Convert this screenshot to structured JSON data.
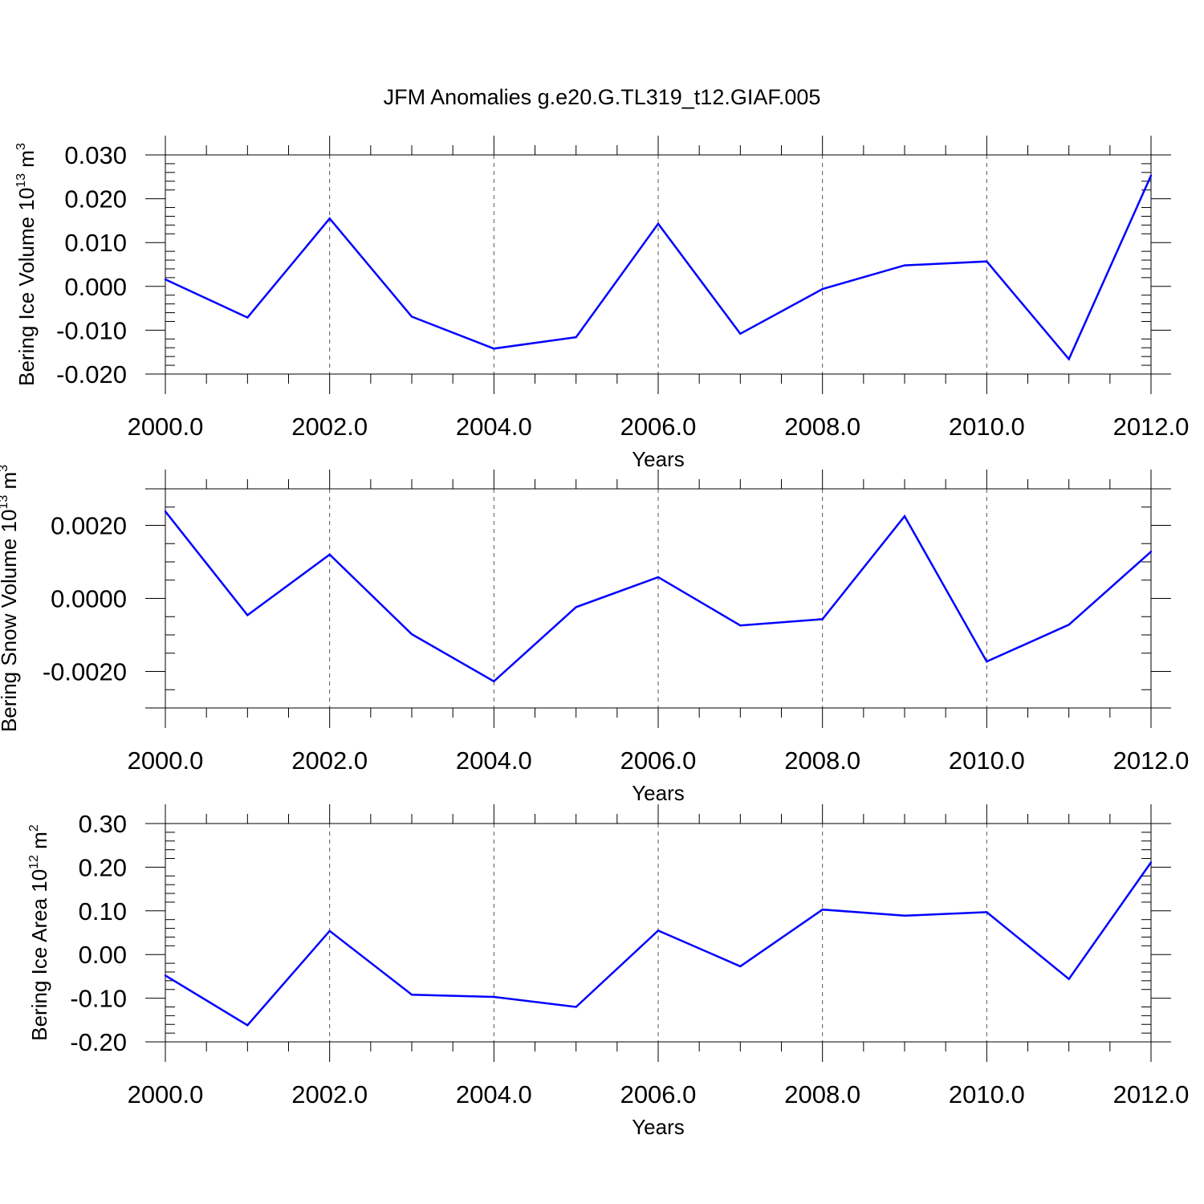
{
  "figure": {
    "title": "JFM Anomalies g.e20.G.TL319_t12.GIAF.005"
  },
  "colors": {
    "series": "#0000ff",
    "axis": "#000000",
    "grid": "#555555"
  },
  "chart_data": [
    {
      "type": "line",
      "ylabel": "Bering Ice Volume 10",
      "ylabel_exp": "13",
      "ylabel_unit": "m",
      "ylabel_unit_exp": "3",
      "xlabel": "Years",
      "xlim": [
        2000,
        2012
      ],
      "ylim": [
        -0.02,
        0.03
      ],
      "x_ticks": [
        2000,
        2002,
        2004,
        2006,
        2008,
        2010,
        2012
      ],
      "x_tick_labels": [
        "2000.0",
        "2002.0",
        "2004.0",
        "2006.0",
        "2008.0",
        "2010.0",
        "2012.0"
      ],
      "y_ticks": [
        -0.02,
        -0.01,
        0.0,
        0.01,
        0.02,
        0.03
      ],
      "y_tick_labels": [
        "-0.020",
        "-0.010",
        "0.000",
        "0.010",
        "0.020",
        "0.030"
      ],
      "x_minor_step": 0.5,
      "y_minor_step": 0.002,
      "vertical_grid": "dashed at major x ticks",
      "x": [
        2000,
        2001,
        2002,
        2003,
        2004,
        2005,
        2006,
        2007,
        2008,
        2009,
        2010,
        2011,
        2012
      ],
      "y": [
        0.0016,
        -0.0071,
        0.0155,
        -0.0069,
        -0.0142,
        -0.0116,
        0.0143,
        -0.0108,
        -0.0006,
        0.0048,
        0.0057,
        -0.0166,
        0.0253
      ]
    },
    {
      "type": "line",
      "ylabel": "Bering Snow Volume 10",
      "ylabel_exp": "13",
      "ylabel_unit": "m",
      "ylabel_unit_exp": "3",
      "xlabel": "Years",
      "xlim": [
        2000,
        2012
      ],
      "ylim": [
        -0.003,
        0.003
      ],
      "x_ticks": [
        2000,
        2002,
        2004,
        2006,
        2008,
        2010,
        2012
      ],
      "x_tick_labels": [
        "2000.0",
        "2002.0",
        "2004.0",
        "2006.0",
        "2008.0",
        "2010.0",
        "2012.0"
      ],
      "y_ticks": [
        -0.002,
        0.0,
        0.002
      ],
      "y_tick_labels": [
        "-0.0020",
        "0.0000",
        "0.0020"
      ],
      "x_minor_step": 0.5,
      "y_minor_step": 0.0005,
      "vertical_grid": "dashed at major x ticks",
      "x": [
        2000,
        2001,
        2002,
        2003,
        2004,
        2005,
        2006,
        2007,
        2008,
        2009,
        2010,
        2011,
        2012
      ],
      "y": [
        0.00238,
        -0.00046,
        0.0012,
        -0.00098,
        -0.00227,
        -0.00024,
        0.00058,
        -0.00074,
        -0.00057,
        0.00225,
        -0.00173,
        -0.00072,
        0.00128
      ]
    },
    {
      "type": "line",
      "ylabel": "Bering Ice Area 10",
      "ylabel_exp": "12",
      "ylabel_unit": "m",
      "ylabel_unit_exp": "2",
      "xlabel": "Years",
      "xlim": [
        2000,
        2012
      ],
      "ylim": [
        -0.2,
        0.3
      ],
      "x_ticks": [
        2000,
        2002,
        2004,
        2006,
        2008,
        2010,
        2012
      ],
      "x_tick_labels": [
        "2000.0",
        "2002.0",
        "2004.0",
        "2006.0",
        "2008.0",
        "2010.0",
        "2012.0"
      ],
      "y_ticks": [
        -0.2,
        -0.1,
        0.0,
        0.1,
        0.2,
        0.3
      ],
      "y_tick_labels": [
        "-0.20",
        "-0.10",
        "0.00",
        "0.10",
        "0.20",
        "0.30"
      ],
      "x_minor_step": 0.5,
      "y_minor_step": 0.02,
      "vertical_grid": "dashed at major x ticks",
      "x": [
        2000,
        2001,
        2002,
        2003,
        2004,
        2005,
        2006,
        2007,
        2008,
        2009,
        2010,
        2011,
        2012
      ],
      "y": [
        -0.048,
        -0.162,
        0.054,
        -0.092,
        -0.097,
        -0.12,
        0.055,
        -0.027,
        0.103,
        0.089,
        0.097,
        -0.056,
        0.211
      ]
    }
  ]
}
